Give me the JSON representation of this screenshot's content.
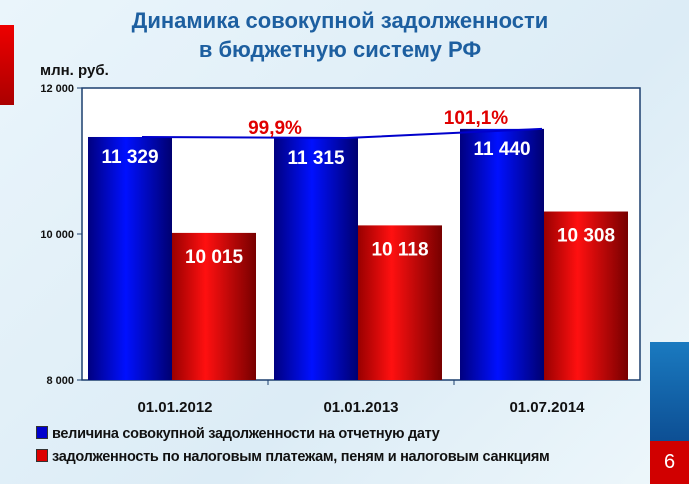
{
  "header": {
    "title_line1": "Динамика совокупной задолженности",
    "title_line2": "в бюджетную систему РФ",
    "unit": "млн. руб."
  },
  "page_number": "6",
  "colors": {
    "blue": "#0000cc",
    "red": "#dd0000",
    "line": "#0000cc",
    "pct": "#e00000"
  },
  "chart_data": {
    "type": "bar",
    "title": "Динамика совокупной задолженности в бюджетную систему РФ",
    "ylabel": "млн. руб.",
    "ylim": [
      8000,
      12000
    ],
    "yticks": [
      8000,
      10000,
      12000
    ],
    "ytick_labels": [
      "8 000",
      "10 000",
      "12 000"
    ],
    "categories": [
      "01.01.2012",
      "01.01.2013",
      "01.07.2014"
    ],
    "series": [
      {
        "name": "величина совокупной задолженности на отчетную дату",
        "values": [
          11329,
          11315,
          11440
        ],
        "labels": [
          "11 329",
          "11 315",
          "11 440"
        ]
      },
      {
        "name": "задолженность по налоговым платежам, пеням и налоговым санкциям",
        "values": [
          10015,
          10118,
          10308
        ],
        "labels": [
          "10 015",
          "10 118",
          "10 308"
        ]
      }
    ],
    "annotations": [
      "99,9%",
      "101,1%"
    ],
    "legend": "bottom-left"
  }
}
